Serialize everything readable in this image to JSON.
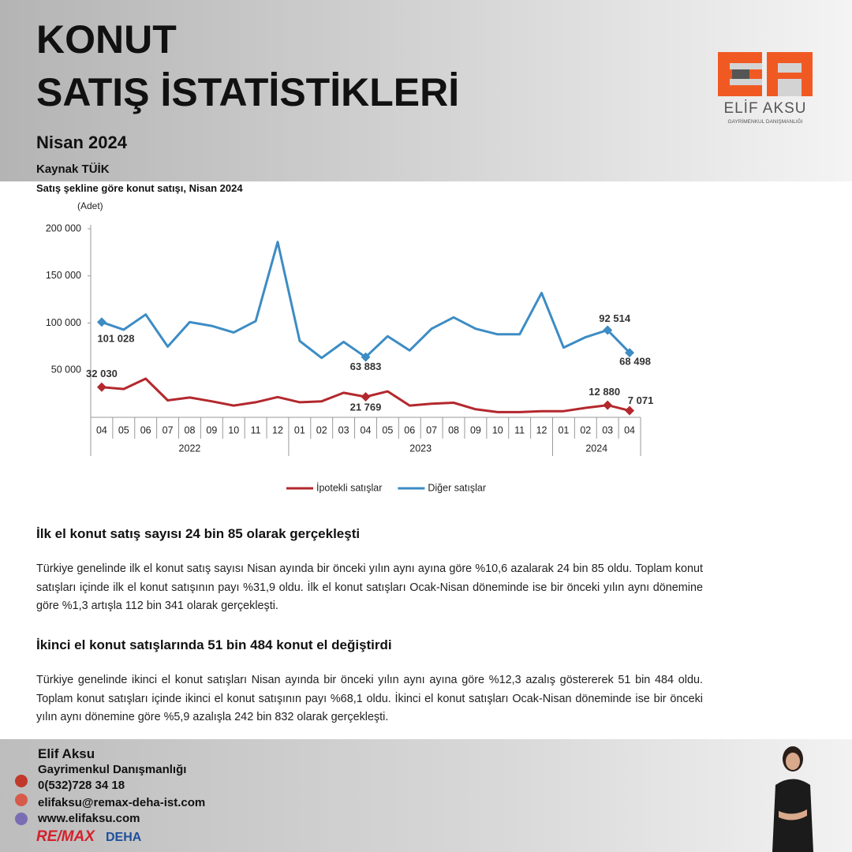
{
  "header": {
    "title_line1": "KONUT",
    "title_line2": "SATIŞ İSTATİSTİKLERİ",
    "subtitle": "Nisan 2024",
    "source": "Kaynak TÜİK"
  },
  "logo": {
    "name": "ELİF AKSU",
    "tagline": "GAYRİMENKUL DANIŞMANLIĞI"
  },
  "chart_data": {
    "type": "line",
    "title": "Satış şekline göre konut satışı, Nisan 2024",
    "y_label": "(Adet)",
    "categories": [
      "04",
      "05",
      "06",
      "07",
      "08",
      "09",
      "10",
      "11",
      "12",
      "01",
      "02",
      "03",
      "04",
      "05",
      "06",
      "07",
      "08",
      "09",
      "10",
      "11",
      "12",
      "01",
      "02",
      "03",
      "04"
    ],
    "category_groups": [
      "2022",
      "2022",
      "2022",
      "2022",
      "2022",
      "2022",
      "2022",
      "2022",
      "2022",
      "2023",
      "2023",
      "2023",
      "2023",
      "2023",
      "2023",
      "2023",
      "2023",
      "2023",
      "2023",
      "2023",
      "2023",
      "2024",
      "2024",
      "2024",
      "2024"
    ],
    "ylim": [
      0,
      200000
    ],
    "yticks": [
      {
        "value": 50000,
        "label": "50 000"
      },
      {
        "value": 100000,
        "label": "100 000"
      },
      {
        "value": 150000,
        "label": "150 000"
      },
      {
        "value": 200000,
        "label": "200 000"
      }
    ],
    "grid": false,
    "legend": "bottom",
    "series": [
      {
        "name": "İpotekli satışlar",
        "color": "#b3282d",
        "values": [
          32030,
          30000,
          41000,
          18000,
          21000,
          17000,
          12500,
          16000,
          21500,
          16000,
          17000,
          26000,
          21769,
          27500,
          12500,
          14500,
          15500,
          8500,
          5500,
          5500,
          6500,
          6500,
          10000,
          12880,
          7071
        ],
        "value_labels": [
          "32 030",
          null,
          null,
          null,
          null,
          null,
          null,
          null,
          null,
          null,
          null,
          null,
          "21 769",
          null,
          null,
          null,
          null,
          null,
          null,
          null,
          null,
          null,
          null,
          "12 880",
          "7 071"
        ]
      },
      {
        "name": "Diğer satışlar",
        "color": "#3d8cc4",
        "values": [
          101028,
          93000,
          109000,
          75000,
          101000,
          97000,
          90000,
          102000,
          186000,
          81000,
          63000,
          80000,
          63883,
          86000,
          71000,
          94000,
          106000,
          94000,
          88000,
          88000,
          132000,
          74000,
          85000,
          92514,
          68498
        ],
        "value_labels": [
          "101 028",
          null,
          null,
          null,
          null,
          null,
          null,
          null,
          null,
          null,
          null,
          null,
          "63 883",
          null,
          null,
          null,
          null,
          null,
          null,
          null,
          null,
          null,
          null,
          "92 514",
          "68 498"
        ]
      }
    ]
  },
  "sections": [
    {
      "heading": "İlk el konut satış sayısı 24 bin 85 olarak gerçekleşti",
      "text": "Türkiye genelinde ilk el konut satış sayısı Nisan ayında bir önceki yılın aynı ayına göre %10,6 azalarak 24 bin 85 oldu. Toplam konut satışları içinde ilk el konut satışının payı %31,9 oldu. İlk el konut satışları Ocak-Nisan döneminde ise bir önceki yılın aynı dönemine göre %1,3 artışla 112 bin 341 olarak gerçekleşti."
    },
    {
      "heading": "İkinci el konut satışlarında 51 bin 484 konut el değiştirdi",
      "text": "Türkiye genelinde ikinci el konut satışları Nisan ayında bir önceki yılın aynı ayına göre %12,3 azalış göstererek 51 bin 484 oldu. Toplam konut satışları içinde ikinci el konut satışının payı %68,1 oldu. İkinci el konut satışları Ocak-Nisan döneminde ise bir önceki yılın aynı dönemine göre %5,9 azalışla 242 bin 832 olarak gerçekleşti."
    }
  ],
  "footer": {
    "name": "Elif Aksu",
    "title": "Gayrimenkul Danışmanlığı",
    "phone": "0(532)728 34 18",
    "email": "elifaksu@remax-deha-ist.com",
    "website": "www.elifaksu.com",
    "brand": "RE/MAX",
    "office": "DEHA"
  }
}
